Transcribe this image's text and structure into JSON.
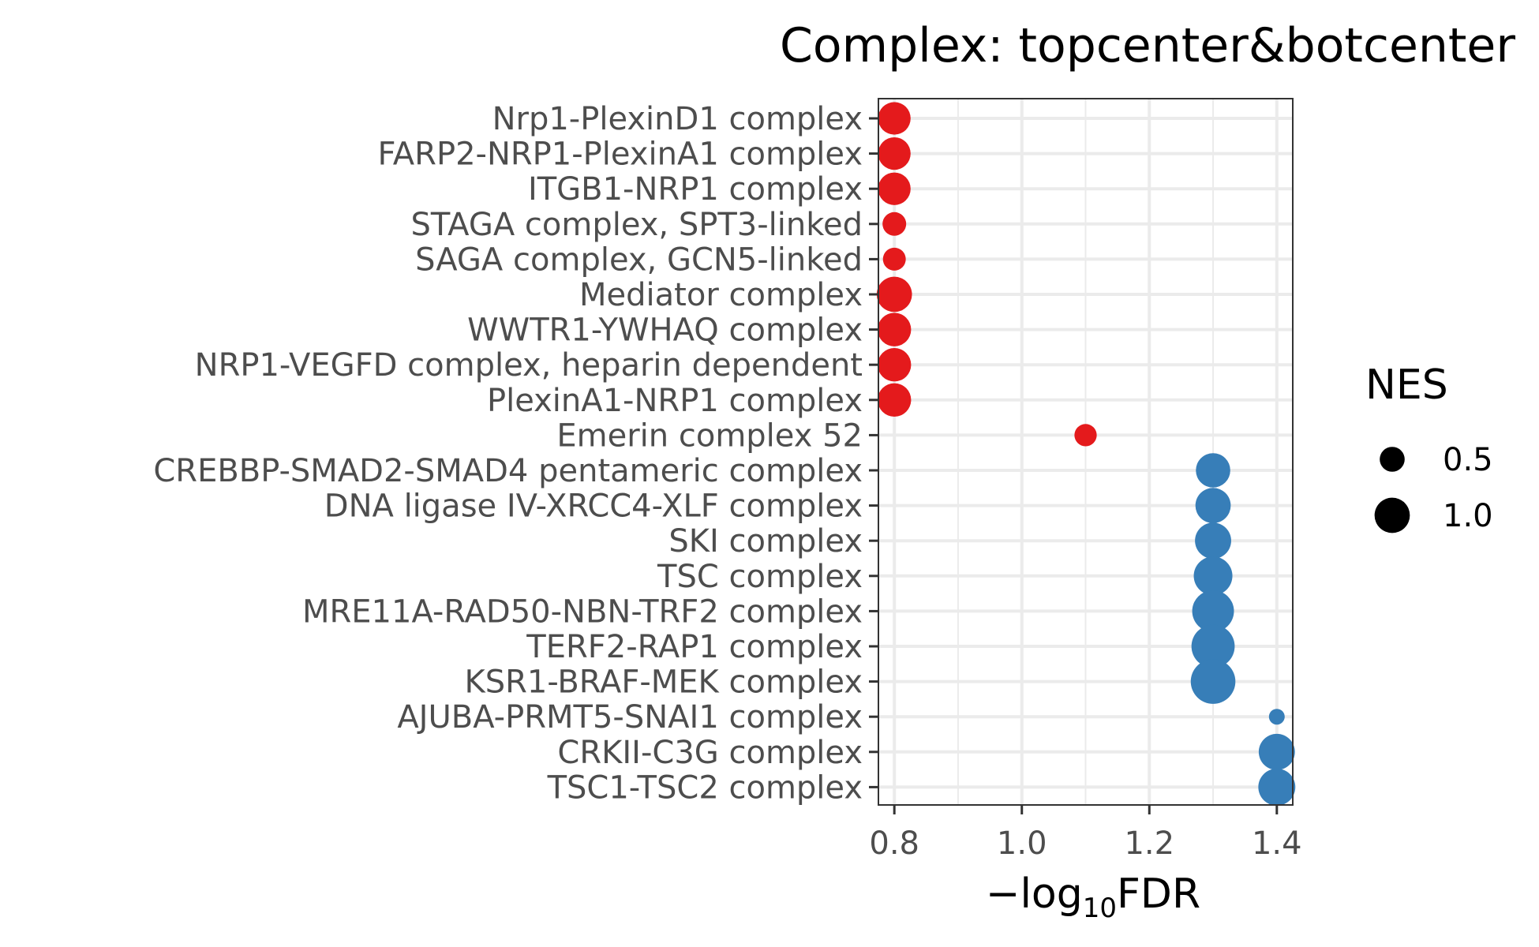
{
  "chart_data": {
    "type": "scatter",
    "title": "Complex: topcenter&botcenter",
    "xlabel": {
      "prefix": "−log",
      "subscript": "10",
      "suffix": "FDR"
    },
    "x_ticks": [
      0.8,
      1.0,
      1.2,
      1.4
    ],
    "x_tick_labels": [
      "0.8",
      "1.0",
      "1.2",
      "1.4"
    ],
    "xlim": [
      0.775,
      1.425
    ],
    "categories": [
      "Nrp1-PlexinD1 complex",
      "FARP2-NRP1-PlexinA1 complex",
      "ITGB1-NRP1 complex",
      "STAGA complex, SPT3-linked",
      "SAGA complex, GCN5-linked",
      "Mediator complex",
      "WWTR1-YWHAQ complex",
      "NRP1-VEGFD complex, heparin dependent",
      "PlexinA1-NRP1 complex",
      "Emerin complex 52",
      "CREBBP-SMAD2-SMAD4 pentameric complex",
      "DNA ligase IV-XRCC4-XLF complex",
      "SKI complex",
      "TSC complex",
      "MRE11A-RAD50-NBN-TRF2 complex",
      "TERF2-RAP1 complex",
      "KSR1-BRAF-MEK complex",
      "AJUBA-PRMT5-SNAI1 complex",
      "CRKII-C3G complex",
      "TSC1-TSC2 complex"
    ],
    "x": [
      0.8,
      0.8,
      0.8,
      0.8,
      0.8,
      0.8,
      0.8,
      0.8,
      0.8,
      1.1,
      1.3,
      1.3,
      1.3,
      1.3,
      1.3,
      1.3,
      1.3,
      1.4,
      1.4,
      1.4
    ],
    "nes": [
      0.85,
      0.85,
      0.85,
      0.45,
      0.42,
      1.0,
      0.9,
      0.9,
      0.9,
      0.4,
      0.95,
      1.0,
      1.05,
      1.2,
      1.4,
      1.5,
      1.6,
      0.2,
      1.05,
      1.1
    ],
    "group": [
      "red",
      "red",
      "red",
      "red",
      "red",
      "red",
      "red",
      "red",
      "red",
      "red",
      "blue",
      "blue",
      "blue",
      "blue",
      "blue",
      "blue",
      "blue",
      "blue",
      "blue",
      "blue"
    ],
    "colors": {
      "red": "#e41a1c",
      "blue": "#377eb8"
    },
    "legend": {
      "title": "NES",
      "placement": "right",
      "entries": [
        {
          "label": "0.5",
          "value": 0.5
        },
        {
          "label": "1.0",
          "value": 1.0
        }
      ]
    },
    "grid": true
  }
}
